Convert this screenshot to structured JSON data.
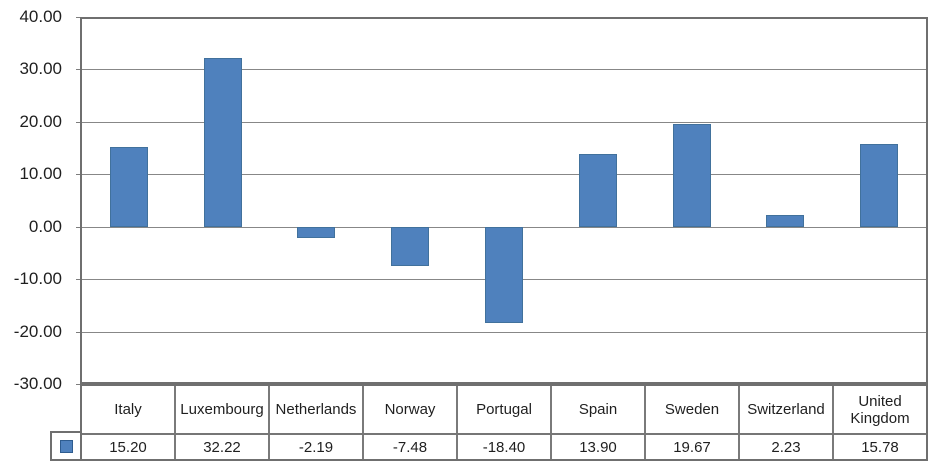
{
  "chart_data": {
    "type": "bar",
    "title": "",
    "xlabel": "",
    "ylabel": "",
    "categories": [
      "Italy",
      "Luxembourg",
      "Netherlands",
      "Norway",
      "Portugal",
      "Spain",
      "Sweden",
      "Switzerland",
      "United Kingdom"
    ],
    "series": [
      {
        "name": "",
        "values": [
          15.2,
          32.22,
          -2.19,
          -7.48,
          -18.4,
          13.9,
          19.67,
          2.23,
          15.78
        ]
      }
    ],
    "value_labels": [
      "15.20",
      "32.22",
      "-2.19",
      "-7.48",
      "-18.40",
      "13.90",
      "19.67",
      "2.23",
      "15.78"
    ],
    "y_axis": {
      "min": -30,
      "max": 40,
      "step": 10,
      "tick_labels": [
        "40.00",
        "30.00",
        "20.00",
        "10.00",
        "0.00",
        "-10.00",
        "-20.00",
        "-30.00"
      ]
    },
    "grid": true,
    "legend_position": "table-left-marker",
    "colors": {
      "bar_fill": "#4f81bd",
      "bar_border": "#41719c",
      "gridline": "#878787",
      "plot_border": "#6f6f6f",
      "text": "#1f1f1f"
    }
  }
}
